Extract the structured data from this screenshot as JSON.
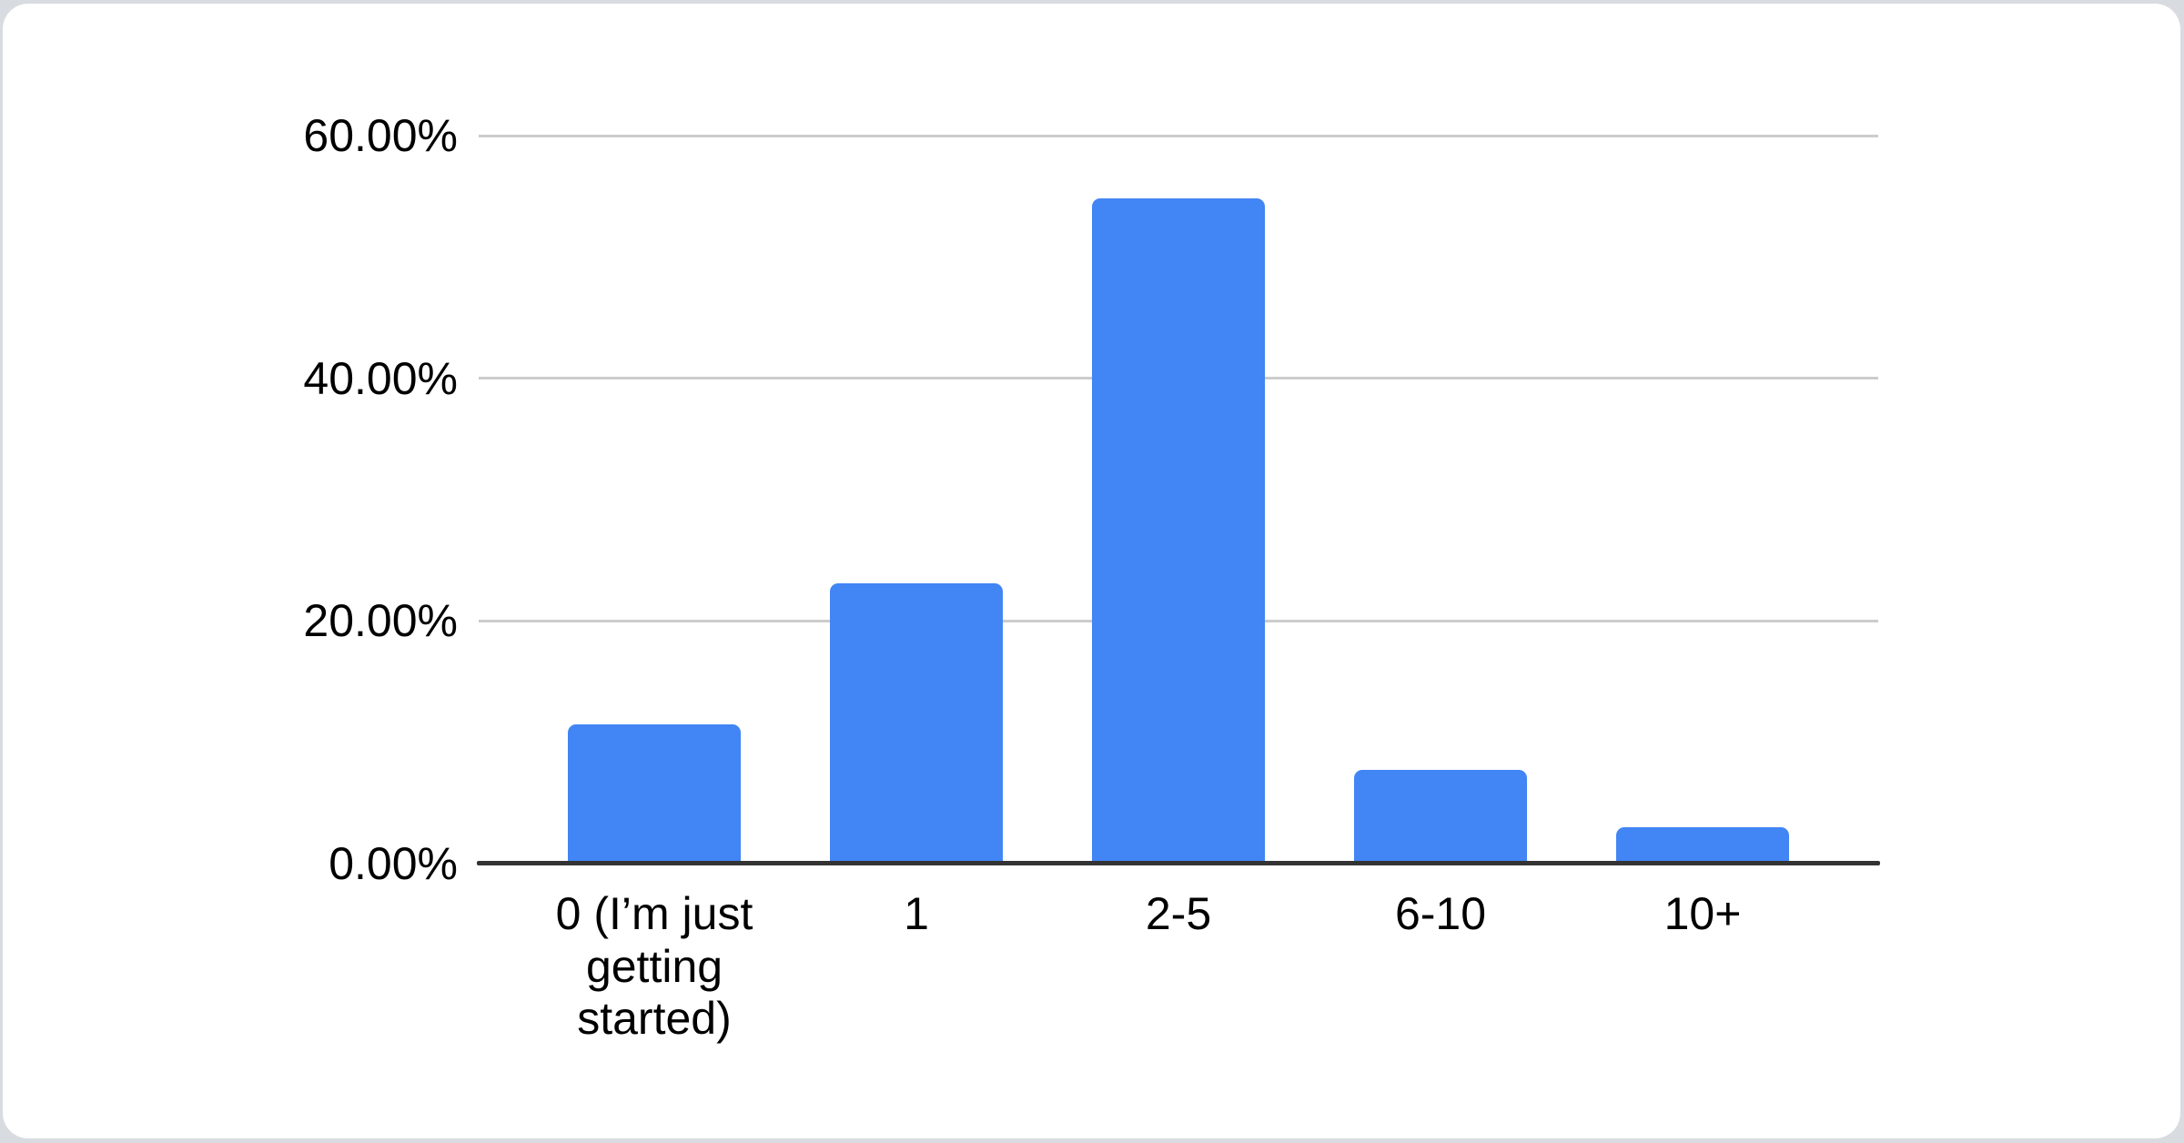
{
  "page": {
    "background_color": "#d8dbdf",
    "card_color": "#ffffff"
  },
  "chart_data": {
    "type": "bar",
    "title": "",
    "xlabel": "",
    "ylabel": "",
    "categories": [
      "0 (I’m just getting started)",
      "1",
      "2-5",
      "6-10",
      "10+"
    ],
    "values": [
      11.5,
      23.1,
      54.8,
      7.7,
      3.0
    ],
    "value_unit": "%",
    "ylim": [
      0,
      60
    ],
    "yticks": [
      0,
      20,
      40,
      60
    ],
    "yticklabels": [
      "0.00%",
      "20.00%",
      "40.00%",
      "60.00%"
    ],
    "grid": true,
    "legend": "none",
    "colors": {
      "bar": "#4285f4",
      "gridline": "#cccccc",
      "axis_line": "#333333",
      "label_text": "#000000"
    }
  }
}
